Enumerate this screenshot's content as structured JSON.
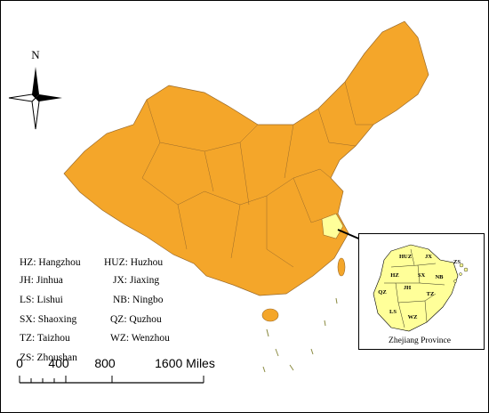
{
  "compass": {
    "label": "N"
  },
  "legend": {
    "left": [
      "HZ: Hangzhou",
      "JH: Jinhua",
      "LS: Lishui",
      "SX: Shaoxing",
      "TZ: Taizhou",
      "ZS: Zhoushan"
    ],
    "right": [
      "HUZ: Huzhou",
      "JX: Jiaxing",
      "NB: Ningbo",
      "QZ: Quzhou",
      "WZ: Wenzhou"
    ]
  },
  "scale_bar": {
    "labels": [
      "0",
      "400",
      "800",
      "1600 Miles"
    ]
  },
  "inset": {
    "title": "Zhejiang Province",
    "labels": [
      "HUZ",
      "JX",
      "HZ",
      "SX",
      "NB",
      "ZS",
      "QZ",
      "JH",
      "TZ",
      "LS",
      "WZ"
    ]
  }
}
